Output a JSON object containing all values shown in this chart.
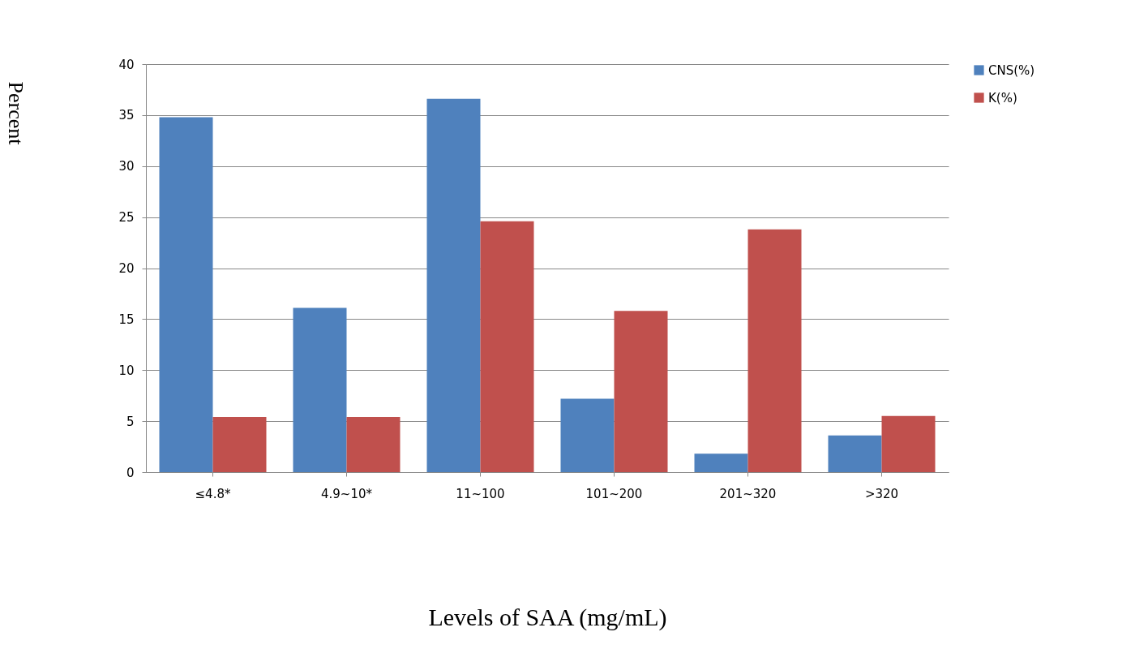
{
  "chart_data": {
    "type": "bar",
    "xlabel": "Levels of SAA (mg/mL)",
    "ylabel": "Percent",
    "categories": [
      "≤4.8*",
      "4.9~10*",
      "11~100",
      "101~200",
      "201~320",
      ">320"
    ],
    "series": [
      {
        "name": "CNS(%)",
        "color": "#4f81bd",
        "values": [
          34.8,
          16.1,
          36.6,
          7.2,
          1.8,
          3.6
        ]
      },
      {
        "name": "K(%)",
        "color": "#c0504d",
        "values": [
          5.4,
          5.4,
          24.6,
          15.8,
          23.8,
          5.5
        ]
      }
    ],
    "ylim": [
      0,
      40
    ],
    "yticks": [
      0,
      5,
      10,
      15,
      20,
      25,
      30,
      35,
      40
    ],
    "grid": "y",
    "legend": "right"
  }
}
